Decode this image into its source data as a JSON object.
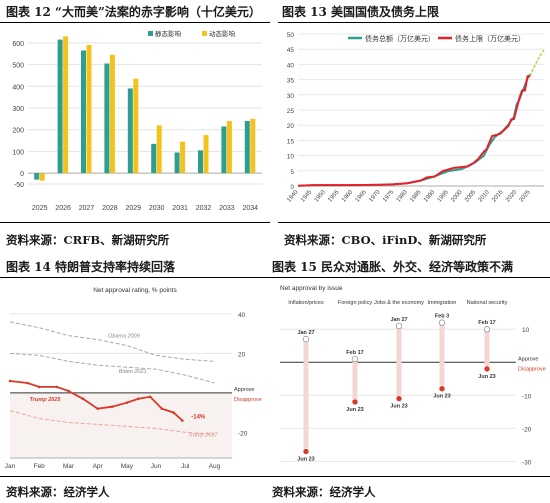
{
  "panels": {
    "p12": {
      "title": "图表 12 “大而美”法案的赤字影响（十亿美元）",
      "source": "资料来源：CRFB、新湖研究所"
    },
    "p13": {
      "title": "图表 13 美国国债及债务上限",
      "source": "资料来源：CBO、iFinD、新湖研究所"
    },
    "p14": {
      "title": "图表 14 特朗普支持率持续回落",
      "source": "资料来源：经济学人"
    },
    "p15": {
      "title": "图表 15 民众对通胀、外交、经济等政策不满",
      "source": "资料来源：经济学人"
    }
  },
  "chart_data": [
    {
      "id": "c12",
      "type": "bar",
      "categories": [
        "2025",
        "2026",
        "2027",
        "2028",
        "2029",
        "2030",
        "2031",
        "2032",
        "2033",
        "2034"
      ],
      "series": [
        {
          "name": "静态影响",
          "color": "#2e9f8c",
          "values": [
            -30,
            615,
            565,
            505,
            390,
            135,
            95,
            105,
            215,
            240
          ]
        },
        {
          "name": "动态影响",
          "color": "#f4c21c",
          "values": [
            -35,
            630,
            590,
            545,
            435,
            220,
            145,
            175,
            240,
            250
          ]
        }
      ],
      "ylim": [
        -50,
        650
      ],
      "yticks": [
        -50,
        0,
        100,
        200,
        300,
        400,
        500,
        600
      ],
      "grid": true,
      "legend": "top-right"
    },
    {
      "id": "c13",
      "type": "line",
      "xlim": [
        1940,
        2030
      ],
      "ylim": [
        0,
        50
      ],
      "xticks": [
        "1940",
        "1945",
        "1950",
        "1955",
        "1960",
        "1965",
        "1970",
        "1975",
        "1980",
        "1985",
        "1990",
        "1995",
        "2000",
        "2005",
        "2010",
        "2015",
        "2020",
        "2025"
      ],
      "yticks": [
        0,
        5,
        10,
        15,
        20,
        25,
        30,
        35,
        40,
        45,
        50
      ],
      "series": [
        {
          "name": "债务总额（万亿美元）",
          "color": "#2e9f8c",
          "points": [
            [
              1940,
              0.05
            ],
            [
              1946,
              0.27
            ],
            [
              1950,
              0.26
            ],
            [
              1955,
              0.27
            ],
            [
              1960,
              0.29
            ],
            [
              1965,
              0.32
            ],
            [
              1970,
              0.38
            ],
            [
              1975,
              0.54
            ],
            [
              1980,
              0.91
            ],
            [
              1985,
              1.82
            ],
            [
              1990,
              3.2
            ],
            [
              1995,
              4.9
            ],
            [
              2000,
              5.6
            ],
            [
              2005,
              7.9
            ],
            [
              2008,
              10.0
            ],
            [
              2010,
              13.5
            ],
            [
              2012,
              16.1
            ],
            [
              2015,
              18.2
            ],
            [
              2017,
              20.2
            ],
            [
              2019,
              22.7
            ],
            [
              2020,
              26.9
            ],
            [
              2021,
              28.4
            ],
            [
              2022,
              30.9
            ],
            [
              2023,
              33.1
            ],
            [
              2024,
              35.5
            ],
            [
              2025,
              36.8
            ]
          ]
        },
        {
          "name": "债务上限（万亿美元）",
          "color": "#e8202a",
          "points": [
            [
              1940,
              0.05
            ],
            [
              1946,
              0.3
            ],
            [
              1954,
              0.28
            ],
            [
              1960,
              0.29
            ],
            [
              1965,
              0.33
            ],
            [
              1970,
              0.38
            ],
            [
              1975,
              0.58
            ],
            [
              1980,
              0.93
            ],
            [
              1985,
              1.82
            ],
            [
              1987,
              2.8
            ],
            [
              1990,
              3.12
            ],
            [
              1993,
              4.9
            ],
            [
              1997,
              5.95
            ],
            [
              2002,
              6.4
            ],
            [
              2004,
              7.4
            ],
            [
              2006,
              8.97
            ],
            [
              2008,
              11.3
            ],
            [
              2009,
              12.1
            ],
            [
              2010,
              14.3
            ],
            [
              2011,
              16.4
            ],
            [
              2014,
              17.2
            ],
            [
              2017,
              19.8
            ],
            [
              2018,
              21.9
            ],
            [
              2019,
              22.0
            ],
            [
              2021,
              28.9
            ],
            [
              2022,
              31.4
            ],
            [
              2023,
              31.4
            ],
            [
              2024,
              36.1
            ],
            [
              2025,
              36.1
            ]
          ]
        },
        {
          "name": "",
          "color": "#b8d45a",
          "dashed": true,
          "points": [
            [
              2025,
              36.2
            ],
            [
              2026,
              38.5
            ],
            [
              2027,
              40.2
            ],
            [
              2028,
              42.0
            ],
            [
              2029,
              43.5
            ],
            [
              2030,
              44.8
            ]
          ]
        }
      ],
      "legend": "top-left"
    },
    {
      "id": "c14",
      "type": "line",
      "title": "Net approval rating, % points",
      "xticks": [
        "Jan",
        "Feb",
        "Mar",
        "Apr",
        "May",
        "Jun",
        "Jul",
        "Aug"
      ],
      "xlim": [
        0,
        7.6
      ],
      "ylim": [
        -33,
        43
      ],
      "yticks": [
        40,
        20,
        -20
      ],
      "zero_labels": {
        "approve": "Approve",
        "disapprove": "Disapprove"
      },
      "series": [
        {
          "name": "Obama 2009",
          "style": "dashed",
          "color": "#aaaaaa",
          "points": [
            [
              0,
              36
            ],
            [
              1,
              33
            ],
            [
              2,
              29
            ],
            [
              3,
              27
            ],
            [
              4,
              24
            ],
            [
              5,
              19
            ],
            [
              6,
              17
            ],
            [
              7,
              16
            ]
          ]
        },
        {
          "name": "Biden 2021",
          "style": "dashed",
          "color": "#aaaaaa",
          "points": [
            [
              0,
              20
            ],
            [
              1,
              19
            ],
            [
              2,
              16
            ],
            [
              3,
              14
            ],
            [
              4,
              13
            ],
            [
              5,
              12
            ],
            [
              6,
              9
            ],
            [
              7,
              5
            ]
          ]
        },
        {
          "name": "Trump 2017",
          "style": "dashed",
          "color": "#f2a49c",
          "points": [
            [
              0,
              -9
            ],
            [
              1,
              -13
            ],
            [
              2,
              -15
            ],
            [
              3,
              -16
            ],
            [
              4,
              -17
            ],
            [
              5,
              -18
            ],
            [
              6,
              -20
            ],
            [
              7,
              -21
            ]
          ]
        },
        {
          "name": "Trump 2025",
          "style": "solid",
          "color": "#d83a28",
          "points": [
            [
              0,
              6
            ],
            [
              0.6,
              5
            ],
            [
              1,
              3
            ],
            [
              1.6,
              3
            ],
            [
              2,
              1
            ],
            [
              2.5,
              -3
            ],
            [
              3,
              -8
            ],
            [
              3.5,
              -7
            ],
            [
              4,
              -5
            ],
            [
              4.4,
              -3
            ],
            [
              4.8,
              -2
            ],
            [
              5.2,
              -8
            ],
            [
              5.6,
              -10
            ],
            [
              5.9,
              -14
            ]
          ]
        }
      ],
      "annotations": [
        {
          "text": "-14%",
          "x": 6.0,
          "y": -14
        }
      ],
      "grid": true
    },
    {
      "id": "c15",
      "type": "scatter",
      "title": "Net approval by issue",
      "ylim": [
        -32,
        14
      ],
      "yticks": [
        10,
        -10,
        -20,
        -30
      ],
      "zero_labels": {
        "approve": "Approve",
        "disapprove": "Disapprove"
      },
      "categories": [
        "Inflation/prices",
        "Foreign policy",
        "Jobs & the economy",
        "Immigration",
        "National security"
      ],
      "start": {
        "values": [
          7,
          1,
          11,
          12,
          10
        ],
        "labels": [
          "Jan 27",
          "Feb 17",
          "Jan 27",
          "Feb 3",
          "Feb 17"
        ]
      },
      "end": {
        "values": [
          -27,
          -12,
          -11,
          -8,
          -2
        ],
        "labels": [
          "Jun 23",
          "Jun 23",
          "Jun 23",
          "Jun 23",
          "Jun 23"
        ]
      }
    }
  ]
}
